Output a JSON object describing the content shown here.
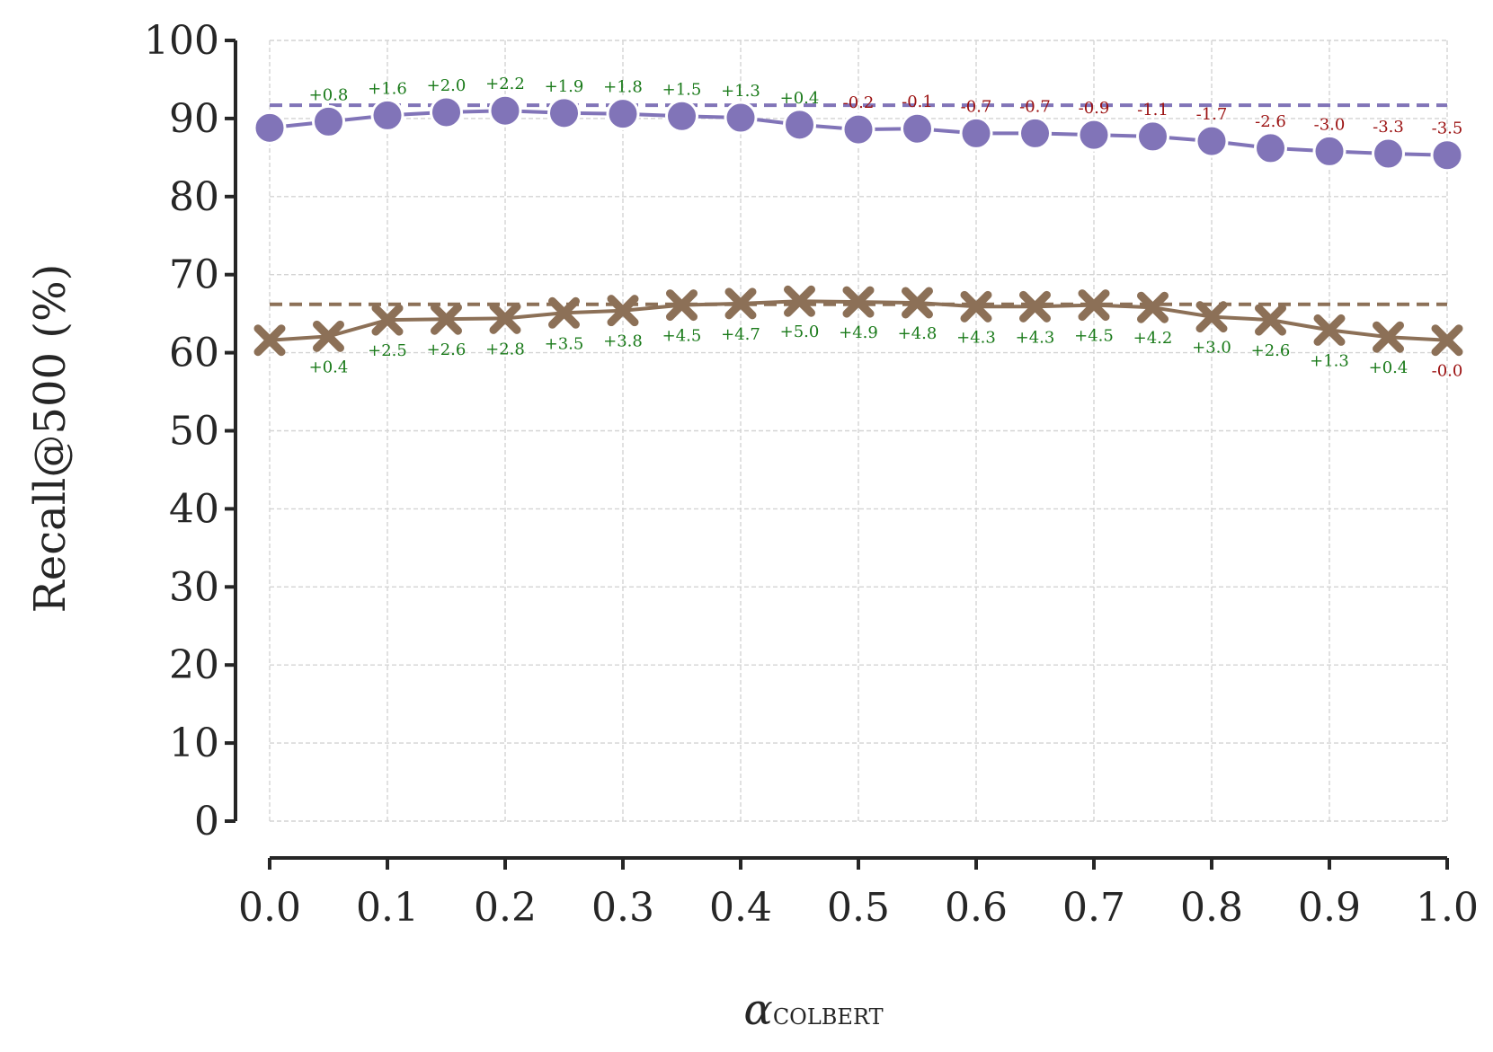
{
  "chart_data": {
    "type": "line",
    "xlabel_symbol": "α",
    "xlabel_subscript": "COLBERT",
    "ylabel": "Recall@500 (%)",
    "xlim": [
      0.0,
      1.0
    ],
    "ylim": [
      0,
      100
    ],
    "x_ticks": [
      "0.0",
      "0.1",
      "0.2",
      "0.3",
      "0.4",
      "0.5",
      "0.6",
      "0.7",
      "0.8",
      "0.9",
      "1.0"
    ],
    "y_ticks": [
      "0",
      "10",
      "20",
      "30",
      "40",
      "50",
      "60",
      "70",
      "80",
      "90",
      "100"
    ],
    "grid": true,
    "positive_color": "#1a7a1a",
    "negative_color": "#9b1111",
    "x": [
      0.0,
      0.05,
      0.1,
      0.15,
      0.2,
      0.25,
      0.3,
      0.35,
      0.4,
      0.45,
      0.5,
      0.55,
      0.6,
      0.65,
      0.7,
      0.75,
      0.8,
      0.85,
      0.9,
      0.95,
      1.0
    ],
    "series": [
      {
        "marker": "circle",
        "color": "#8174b8",
        "values": [
          88.8,
          89.6,
          90.4,
          90.8,
          91.0,
          90.7,
          90.6,
          90.3,
          90.1,
          89.2,
          88.6,
          88.7,
          88.1,
          88.1,
          87.9,
          87.7,
          87.1,
          86.2,
          85.8,
          85.5,
          85.3
        ],
        "baseline": 91.7,
        "deltas": [
          "",
          "+0.8",
          "+1.6",
          "+2.0",
          "+2.2",
          "+1.9",
          "+1.8",
          "+1.5",
          "+1.3",
          "+0.4",
          "-0.2",
          "-0.1",
          "-0.7",
          "-0.7",
          "-0.9",
          "-1.1",
          "-1.7",
          "-2.6",
          "-3.0",
          "-3.3",
          "-3.5"
        ]
      },
      {
        "marker": "x",
        "color": "#8c7057",
        "values": [
          61.6,
          62.1,
          64.2,
          64.3,
          64.4,
          65.1,
          65.4,
          66.1,
          66.3,
          66.6,
          66.5,
          66.4,
          65.9,
          65.9,
          66.1,
          65.8,
          64.6,
          64.2,
          62.9,
          62.0,
          61.6
        ],
        "baseline": 66.2,
        "deltas": [
          "",
          "+0.4",
          "+2.5",
          "+2.6",
          "+2.8",
          "+3.5",
          "+3.8",
          "+4.5",
          "+4.7",
          "+5.0",
          "+4.9",
          "+4.8",
          "+4.3",
          "+4.3",
          "+4.5",
          "+4.2",
          "+3.0",
          "+2.6",
          "+1.3",
          "+0.4",
          "-0.0"
        ]
      }
    ]
  }
}
